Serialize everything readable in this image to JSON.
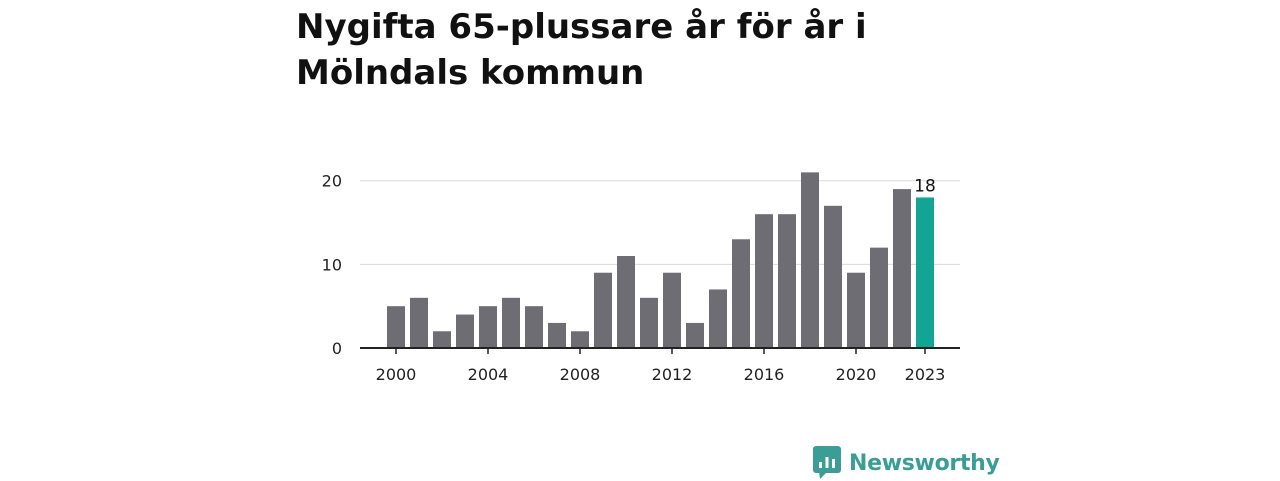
{
  "title": "Nygifta 65-plussare år för år i Mölndals kommun",
  "brand": {
    "name": "Newsworthy",
    "color": "#3a9e96",
    "icon": "newsworthy-logo-icon"
  },
  "colors": {
    "bar": "#6e6d73",
    "highlight": "#12a594",
    "grid": "#d9d9d9",
    "axis": "#222222",
    "text": "#222222"
  },
  "chart_data": {
    "type": "bar",
    "x": [
      2000,
      2001,
      2002,
      2003,
      2004,
      2005,
      2006,
      2007,
      2008,
      2009,
      2010,
      2011,
      2012,
      2013,
      2014,
      2015,
      2016,
      2017,
      2018,
      2019,
      2020,
      2021,
      2022,
      2023
    ],
    "values": [
      5,
      6,
      2,
      4,
      5,
      6,
      5,
      3,
      2,
      9,
      11,
      6,
      9,
      3,
      7,
      13,
      16,
      16,
      21,
      17,
      9,
      12,
      19,
      18
    ],
    "x_ticks": [
      2000,
      2004,
      2008,
      2012,
      2016,
      2020,
      2023
    ],
    "y_ticks": [
      0,
      10,
      20
    ],
    "ylim": [
      0,
      22
    ],
    "highlight_index": 23,
    "highlight_label": "18",
    "grid": true,
    "legend": "none"
  }
}
